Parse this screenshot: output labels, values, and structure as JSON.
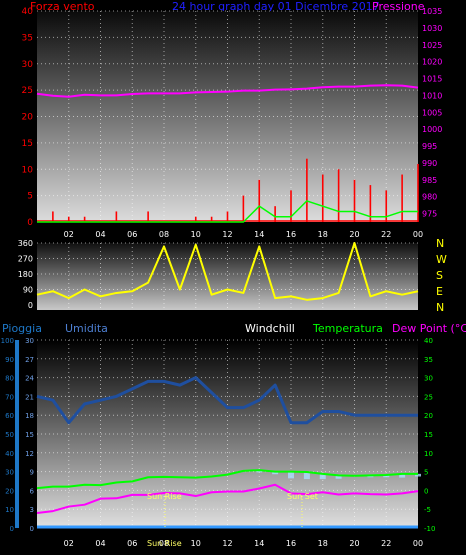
{
  "header": {
    "left": "Forza vento",
    "center": "24 hour graph day 01 Dicembre 2017",
    "right": "Pressione"
  },
  "legend2": {
    "pioggia": "Pioggia",
    "umidita": "Umidita",
    "windchill": "Windchill",
    "temperatura": "Temperatura",
    "dewpoint": "Dew Point (°C)"
  },
  "compass": [
    "N",
    "W",
    "S",
    "E",
    "N"
  ],
  "annotations": {
    "sunrise": "Sun Rise",
    "sunset": "Sun Set",
    "sun_bottom": "Sun Rise"
  },
  "colors": {
    "wind": "#ff0000",
    "gust": "#00ff00",
    "pressure": "#ff00ff",
    "direction": "#ffff00",
    "humidity": "#1f4f9f",
    "temperature": "#00ff00",
    "dewpoint": "#ff00ff",
    "windchill": "#aaddff",
    "rain": "#3399ff",
    "rain_axis": "#1e78c8",
    "humidity_axis": "#4d7fd1"
  },
  "chart_data": [
    {
      "type": "line",
      "name": "wind-pressure",
      "xticks": [
        "02",
        "04",
        "06",
        "08",
        "10",
        "12",
        "14",
        "16",
        "18",
        "20",
        "22",
        "00"
      ],
      "x_hours": [
        0,
        1,
        2,
        3,
        4,
        5,
        6,
        7,
        8,
        9,
        10,
        11,
        12,
        13,
        14,
        15,
        16,
        17,
        18,
        19,
        20,
        21,
        22,
        23,
        24
      ],
      "left_axis": {
        "ticks": [
          0,
          5,
          10,
          15,
          20,
          25,
          30,
          35,
          40
        ],
        "ylim": [
          0,
          40
        ]
      },
      "right_axis": {
        "ticks": [
          975,
          980,
          985,
          990,
          995,
          1000,
          1005,
          1010,
          1015,
          1020,
          1025,
          1030,
          1035
        ],
        "ylim": [
          972.5,
          1035
        ]
      },
      "series": [
        {
          "name": "Forza vento",
          "axis": "left",
          "kind": "spikes",
          "values": [
            0,
            2,
            1,
            1,
            0,
            2,
            0,
            2,
            0,
            0,
            1,
            1,
            2,
            5,
            8,
            3,
            6,
            12,
            9,
            10,
            8,
            7,
            6,
            9,
            11
          ]
        },
        {
          "name": "gust",
          "axis": "left",
          "kind": "line",
          "values": [
            0,
            0,
            0,
            0,
            0,
            0,
            0,
            0,
            0,
            0,
            0,
            0,
            0,
            0,
            3,
            1,
            1,
            4,
            3,
            2,
            2,
            1,
            1,
            2,
            2
          ]
        },
        {
          "name": "Pressione",
          "axis": "right",
          "values": [
            1010.5,
            1009.9,
            1009.6,
            1010.2,
            1010.0,
            1010.0,
            1010.4,
            1010.6,
            1010.6,
            1010.6,
            1010.9,
            1011.0,
            1011.1,
            1011.4,
            1011.4,
            1011.7,
            1011.8,
            1012.0,
            1012.4,
            1012.6,
            1012.6,
            1012.9,
            1013.0,
            1012.9,
            1012.3
          ]
        }
      ]
    },
    {
      "type": "line",
      "name": "wind-direction",
      "left_axis": {
        "ticks": [
          0,
          90,
          180,
          270,
          360
        ],
        "ylim": [
          0,
          360
        ]
      },
      "series": [
        {
          "name": "direction",
          "values": [
            60,
            80,
            40,
            90,
            50,
            70,
            80,
            130,
            340,
            90,
            350,
            60,
            90,
            70,
            340,
            40,
            50,
            30,
            40,
            70,
            360,
            50,
            80,
            60,
            80
          ]
        }
      ]
    },
    {
      "type": "line",
      "name": "humidity-temperature",
      "pioggia_axis": {
        "ticks": [
          0,
          10,
          20,
          30,
          40,
          50,
          60,
          70,
          80,
          90,
          100
        ],
        "ylim": [
          0,
          100
        ]
      },
      "umidita_axis": {
        "ticks": [
          0,
          3,
          6,
          9,
          12,
          15,
          18,
          21,
          24,
          27,
          30
        ],
        "ylim": [
          0,
          30
        ]
      },
      "temp_axis": {
        "ticks": [
          -10,
          -5,
          0,
          5,
          10,
          15,
          20,
          25,
          30,
          35,
          40
        ],
        "ylim": [
          -10,
          40
        ]
      },
      "series": [
        {
          "name": "Umidita",
          "axis": "temp",
          "values": [
            25,
            24,
            18,
            23,
            24,
            25,
            27,
            29,
            29,
            28,
            30,
            26,
            22,
            22,
            24,
            28,
            18,
            18,
            21,
            21,
            20,
            20,
            20,
            20,
            20
          ]
        },
        {
          "name": "Temperatura",
          "axis": "temp",
          "values": [
            0.6,
            1,
            1,
            1.5,
            1.4,
            2.1,
            2.4,
            3.5,
            3.6,
            3.5,
            3.4,
            3.7,
            4.2,
            5.2,
            5.4,
            5,
            5,
            4.9,
            4.4,
            4,
            3.9,
            4,
            4.1,
            4.4,
            4.4
          ]
        },
        {
          "name": "Dew Point",
          "axis": "temp",
          "values": [
            -6,
            -5.5,
            -4.3,
            -3.8,
            -2.2,
            -2.1,
            -1.2,
            -1.2,
            -0.7,
            -0.8,
            -1.5,
            -0.5,
            -0.3,
            -0.3,
            0.5,
            1.5,
            -0.8,
            -1,
            -0.5,
            -1.1,
            -0.8,
            -1,
            -1.1,
            -0.8,
            -0.2
          ]
        },
        {
          "name": "Windchill",
          "axis": "temp",
          "values": [
            0.6,
            1,
            1,
            1.5,
            1.4,
            2.1,
            2.4,
            3.5,
            3.6,
            3.5,
            3.4,
            3.7,
            4.2,
            5.2,
            4.8,
            4.3,
            3.2,
            3,
            3,
            3.1,
            3.6,
            3.5,
            3.5,
            3.4,
            3.7
          ]
        },
        {
          "name": "Pioggia",
          "axis": "pioggia",
          "values": [
            0,
            0,
            0,
            0,
            0,
            0,
            0,
            0,
            0,
            0,
            0,
            0,
            0,
            0,
            0,
            0,
            0,
            0,
            0,
            0,
            0,
            0,
            0,
            0,
            0
          ]
        }
      ]
    }
  ]
}
